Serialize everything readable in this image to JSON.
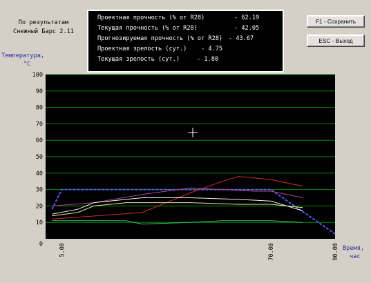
{
  "source": {
    "line1": "По результатам",
    "line2": "Снежный Барс 2.11"
  },
  "info": [
    {
      "label": "Проектная прочность (% от R28)",
      "value": "- 62.19"
    },
    {
      "label": "Текущая прочность (% от R28)",
      "value": "- 42.05"
    },
    {
      "label": "Прогнозируемая прочность (% от R28)",
      "value": "- 43.67"
    },
    {
      "label": "Проектная зрелость (сут.)",
      "value": "- 4.75"
    },
    {
      "label": "Текущая зрелость (сут.)",
      "value": "- 1.80"
    }
  ],
  "buttons": {
    "save": "F1 - Сохранить",
    "exit": "ESC - Выход"
  },
  "chart_data": {
    "type": "line",
    "ylabel_line1": "Температура,",
    "ylabel_line2": "°C",
    "xlabel_line1": "Время,",
    "xlabel_line2": "час",
    "ylim": [
      0,
      100
    ],
    "yticks": [
      "0",
      "10",
      "20",
      "30",
      "40",
      "50",
      "60",
      "70",
      "80",
      "90",
      "100"
    ],
    "xticks": [
      {
        "value": 5,
        "label": "5.00"
      },
      {
        "value": 70,
        "label": "70.00"
      },
      {
        "value": 90,
        "label": "90.00"
      }
    ],
    "grid": true,
    "colors": {
      "background": "#000000",
      "grid": "#008a00",
      "project": "#5a5af0",
      "red": "#d03030",
      "magenta": "#b0409a",
      "white": "#f4f4f4",
      "yellow": "#e8e8a0",
      "green": "#40c070"
    },
    "series": [
      {
        "key": "project",
        "dashed": true,
        "x": [
          2,
          5,
          70,
          90
        ],
        "y": [
          18,
          30,
          30,
          3
        ]
      },
      {
        "key": "red",
        "x": [
          2,
          30,
          45,
          55,
          60,
          65,
          70,
          80
        ],
        "y": [
          12,
          16,
          28,
          35,
          38,
          37,
          36,
          32
        ]
      },
      {
        "key": "magenta",
        "x": [
          2,
          15,
          30,
          45,
          55,
          65,
          70,
          80
        ],
        "y": [
          20,
          22,
          27,
          31,
          30,
          29,
          29,
          25
        ]
      },
      {
        "key": "white",
        "x": [
          2,
          10,
          15,
          30,
          45,
          60,
          70,
          80
        ],
        "y": [
          15,
          18,
          22,
          25,
          25,
          24,
          23,
          17
        ]
      },
      {
        "key": "yellow",
        "x": [
          2,
          10,
          15,
          25,
          45,
          60,
          70,
          80
        ],
        "y": [
          14,
          16,
          20,
          22,
          22,
          21,
          21,
          19
        ]
      },
      {
        "key": "green",
        "x": [
          2,
          10,
          25,
          30,
          45,
          55,
          65,
          70,
          80
        ],
        "y": [
          11,
          11,
          11,
          9,
          10,
          11,
          11,
          11,
          10
        ]
      }
    ]
  }
}
